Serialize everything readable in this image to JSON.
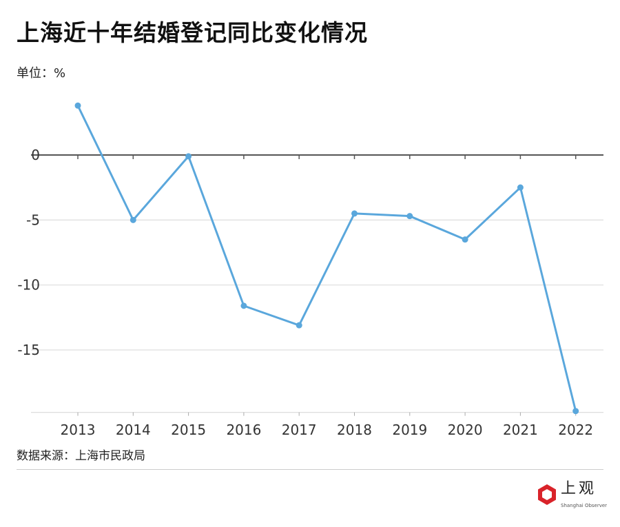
{
  "chart_data": {
    "type": "line",
    "title": "上海近十年结婚登记同比变化情况",
    "unit_label": "单位：%",
    "source": "数据来源：上海市民政局",
    "categories": [
      "2013",
      "2014",
      "2015",
      "2016",
      "2017",
      "2018",
      "2019",
      "2020",
      "2021",
      "2022"
    ],
    "values": [
      3.8,
      -5.0,
      -0.1,
      -11.6,
      -13.1,
      -4.5,
      -4.7,
      -6.5,
      -2.5,
      -19.7
    ],
    "ylim": [
      -19.8,
      3.8
    ],
    "yticks": [
      0,
      -5,
      -10,
      -15
    ],
    "grid": true,
    "color": "#5aa7dc",
    "xlabel": "",
    "ylabel": ""
  },
  "logo": {
    "text": "上观",
    "subtext": "Shanghai Observer",
    "color": "#d9232a"
  }
}
